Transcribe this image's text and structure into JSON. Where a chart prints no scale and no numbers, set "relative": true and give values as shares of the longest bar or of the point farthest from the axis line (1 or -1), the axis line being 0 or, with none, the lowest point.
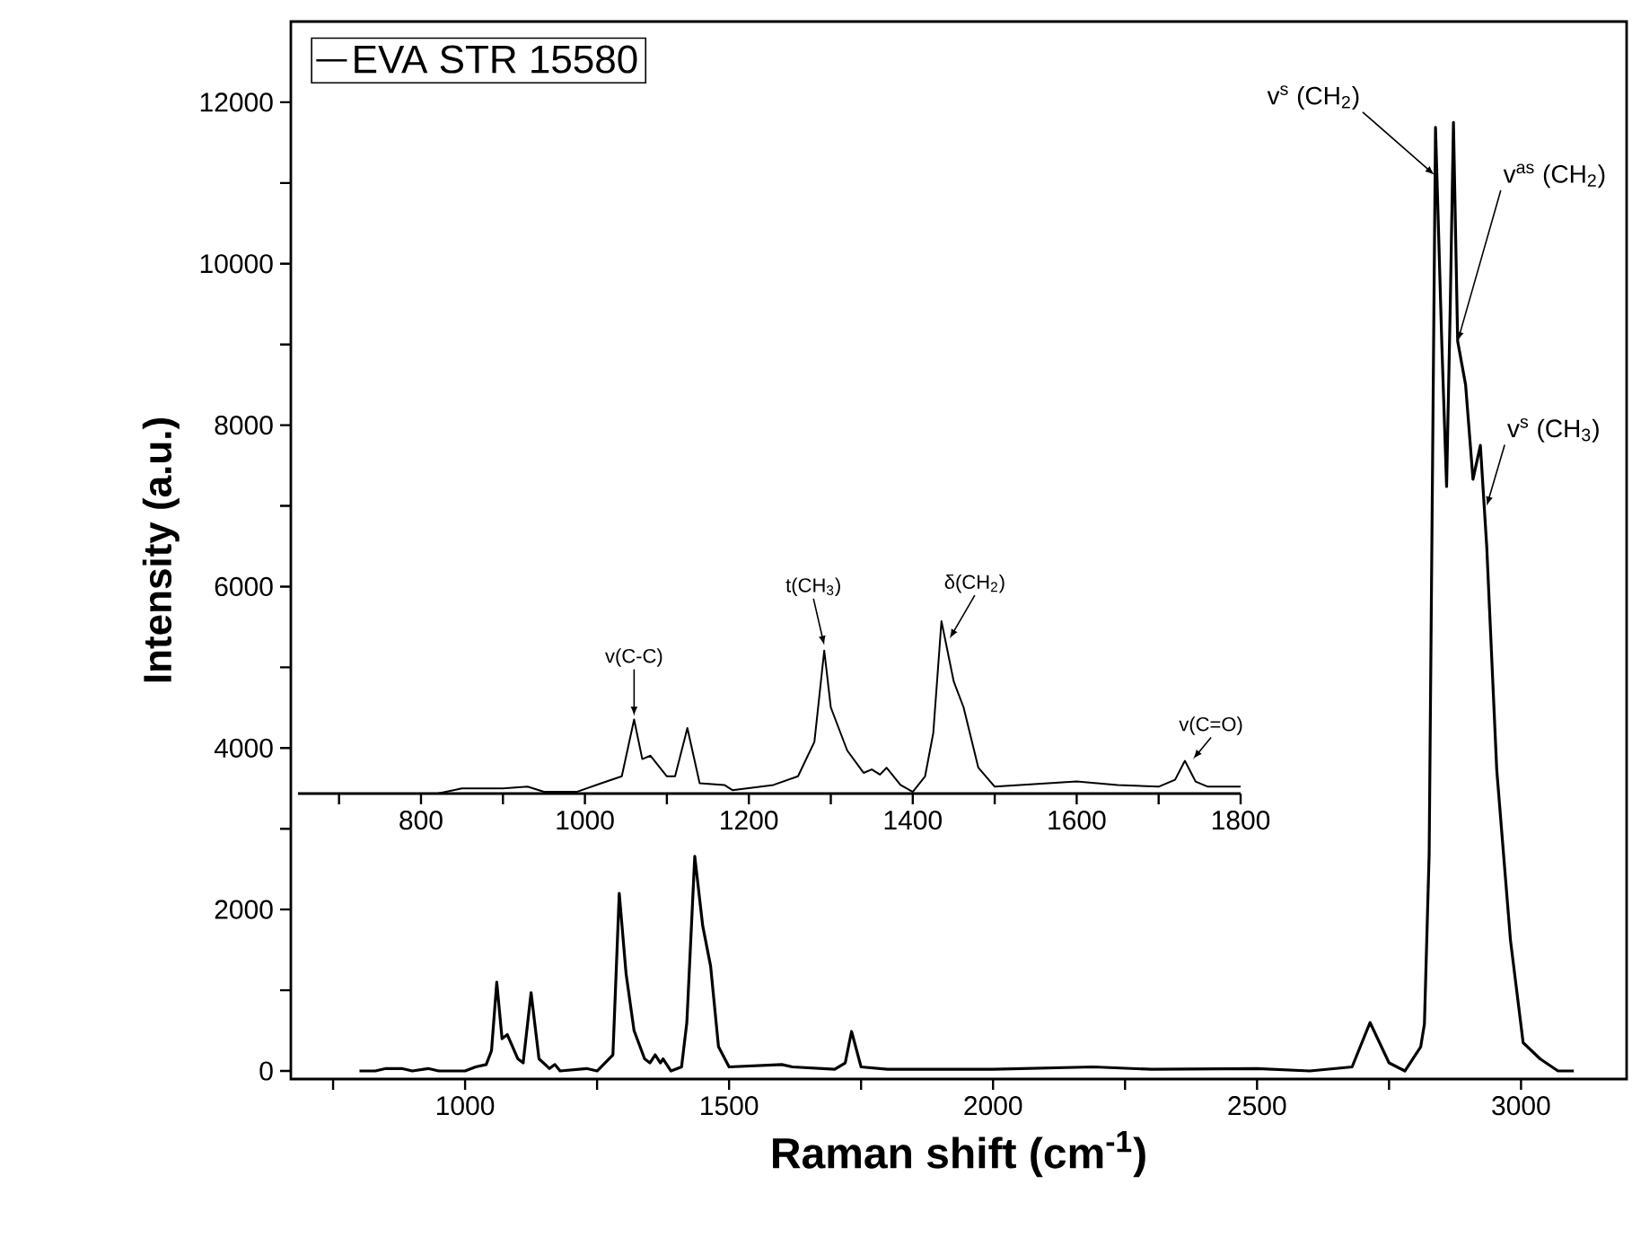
{
  "chart_data": [
    {
      "type": "line",
      "xlabel": "Raman shift (cm$^{-1}$)",
      "ylabel": "Intensity (a.u.)",
      "xlim": [
        670,
        3200
      ],
      "ylim": [
        -100,
        13000
      ],
      "xticks": [
        {
          "value": 750,
          "label": null
        },
        1000,
        {
          "value": 1250,
          "label": null
        },
        1500,
        {
          "value": 1750,
          "label": null
        },
        2000,
        {
          "value": 2250,
          "label": null
        },
        2500,
        {
          "value": 2750,
          "label": null
        },
        3000
      ],
      "yticks": [
        0,
        {
          "value": 1000,
          "label": null
        },
        2000,
        {
          "value": 3000,
          "label": null
        },
        4000,
        {
          "value": 5000,
          "label": null
        },
        6000,
        {
          "value": 7000,
          "label": null
        },
        8000,
        {
          "value": 9000,
          "label": null
        },
        10000,
        {
          "value": 11000,
          "label": null
        },
        12000
      ],
      "legend": "top left",
      "series": [
        {
          "name": "EVA STR 15580",
          "color": "#000000",
          "x": [
            800,
            830,
            850,
            880,
            900,
            930,
            950,
            1000,
            1020,
            1040,
            1050,
            1060,
            1070,
            1080,
            1100,
            1110,
            1125,
            1140,
            1160,
            1170,
            1180,
            1230,
            1250,
            1280,
            1292,
            1305,
            1320,
            1340,
            1350,
            1360,
            1370,
            1375,
            1390,
            1410,
            1420,
            1435,
            1450,
            1465,
            1480,
            1500,
            1600,
            1620,
            1700,
            1720,
            1732,
            1750,
            1800,
            2000,
            2190,
            2300,
            2500,
            2600,
            2680,
            2714,
            2750,
            2780,
            2810,
            2817,
            2826,
            2838,
            2850,
            2859,
            2866,
            2872,
            2880,
            2895,
            2909,
            2923,
            2935,
            2954,
            2980,
            3004,
            3036,
            3070,
            3100
          ],
          "values": [
            0,
            0,
            30,
            30,
            0,
            30,
            0,
            0,
            50,
            80,
            250,
            1100,
            400,
            450,
            150,
            100,
            970,
            150,
            30,
            80,
            0,
            30,
            0,
            200,
            2200,
            1200,
            500,
            150,
            100,
            200,
            100,
            150,
            0,
            50,
            600,
            2660,
            1800,
            1300,
            300,
            50,
            80,
            50,
            20,
            100,
            490,
            50,
            20,
            20,
            50,
            20,
            30,
            0,
            50,
            600,
            100,
            0,
            300,
            580,
            2690,
            11690,
            9000,
            7240,
            9500,
            11750,
            9040,
            8500,
            7330,
            7750,
            6500,
            3730,
            1620,
            350,
            150,
            0,
            0
          ]
        }
      ],
      "annotations": [
        {
          "text": "v$^{s}$ (CH$_{2}$)",
          "x": 2836,
          "y": 11100
        },
        {
          "text": "v$^{as}$ (CH$_{2}$)",
          "x": 2880,
          "y": 9040
        },
        {
          "text": "v$^{s}$ (CH$_{3}$)",
          "x": 2935,
          "y": 7000
        }
      ]
    },
    {
      "type": "line",
      "relative": true,
      "tick_labels": "x",
      "xlim": [
        650,
        1800
      ],
      "xticks": [
        {
          "value": 700,
          "label": null
        },
        800,
        {
          "value": 900,
          "label": null
        },
        1000,
        {
          "value": 1100,
          "label": null
        },
        1200,
        {
          "value": 1300,
          "label": null
        },
        1400,
        {
          "value": 1500,
          "label": null
        },
        1600,
        {
          "value": 1700,
          "label": null
        },
        1800
      ],
      "series": [
        {
          "color": "#000000",
          "x": [
            800,
            820,
            850,
            900,
            930,
            950,
            990,
            1020,
            1045,
            1060,
            1070,
            1080,
            1100,
            1110,
            1125,
            1140,
            1170,
            1180,
            1230,
            1260,
            1280,
            1292,
            1300,
            1320,
            1340,
            1350,
            1360,
            1368,
            1385,
            1400,
            1415,
            1425,
            1435,
            1450,
            1462,
            1480,
            1500,
            1600,
            1650,
            1700,
            1720,
            1732,
            1745,
            1760,
            1800
          ],
          "values": [
            0,
            0,
            0.03,
            0.03,
            0.04,
            0.01,
            0.01,
            0.06,
            0.1,
            0.43,
            0.2,
            0.22,
            0.1,
            0.1,
            0.38,
            0.06,
            0.05,
            0.02,
            0.05,
            0.1,
            0.3,
            0.83,
            0.5,
            0.25,
            0.12,
            0.14,
            0.11,
            0.15,
            0.05,
            0.01,
            0.1,
            0.35,
            1,
            0.65,
            0.5,
            0.15,
            0.04,
            0.07,
            0.05,
            0.04,
            0.08,
            0.19,
            0.07,
            0.04,
            0.04
          ]
        }
      ],
      "annotations": [
        {
          "text": "v(C-C)",
          "x": 1060,
          "y": 0.45
        },
        {
          "text": "t(CH$_{3}$)",
          "x": 1292,
          "y": 0.86
        },
        {
          "text": "δ(CH$_{2}$)",
          "x": 1445,
          "y": 0.9
        },
        {
          "text": "v(C=O)",
          "x": 1742,
          "y": 0.2
        }
      ]
    }
  ]
}
